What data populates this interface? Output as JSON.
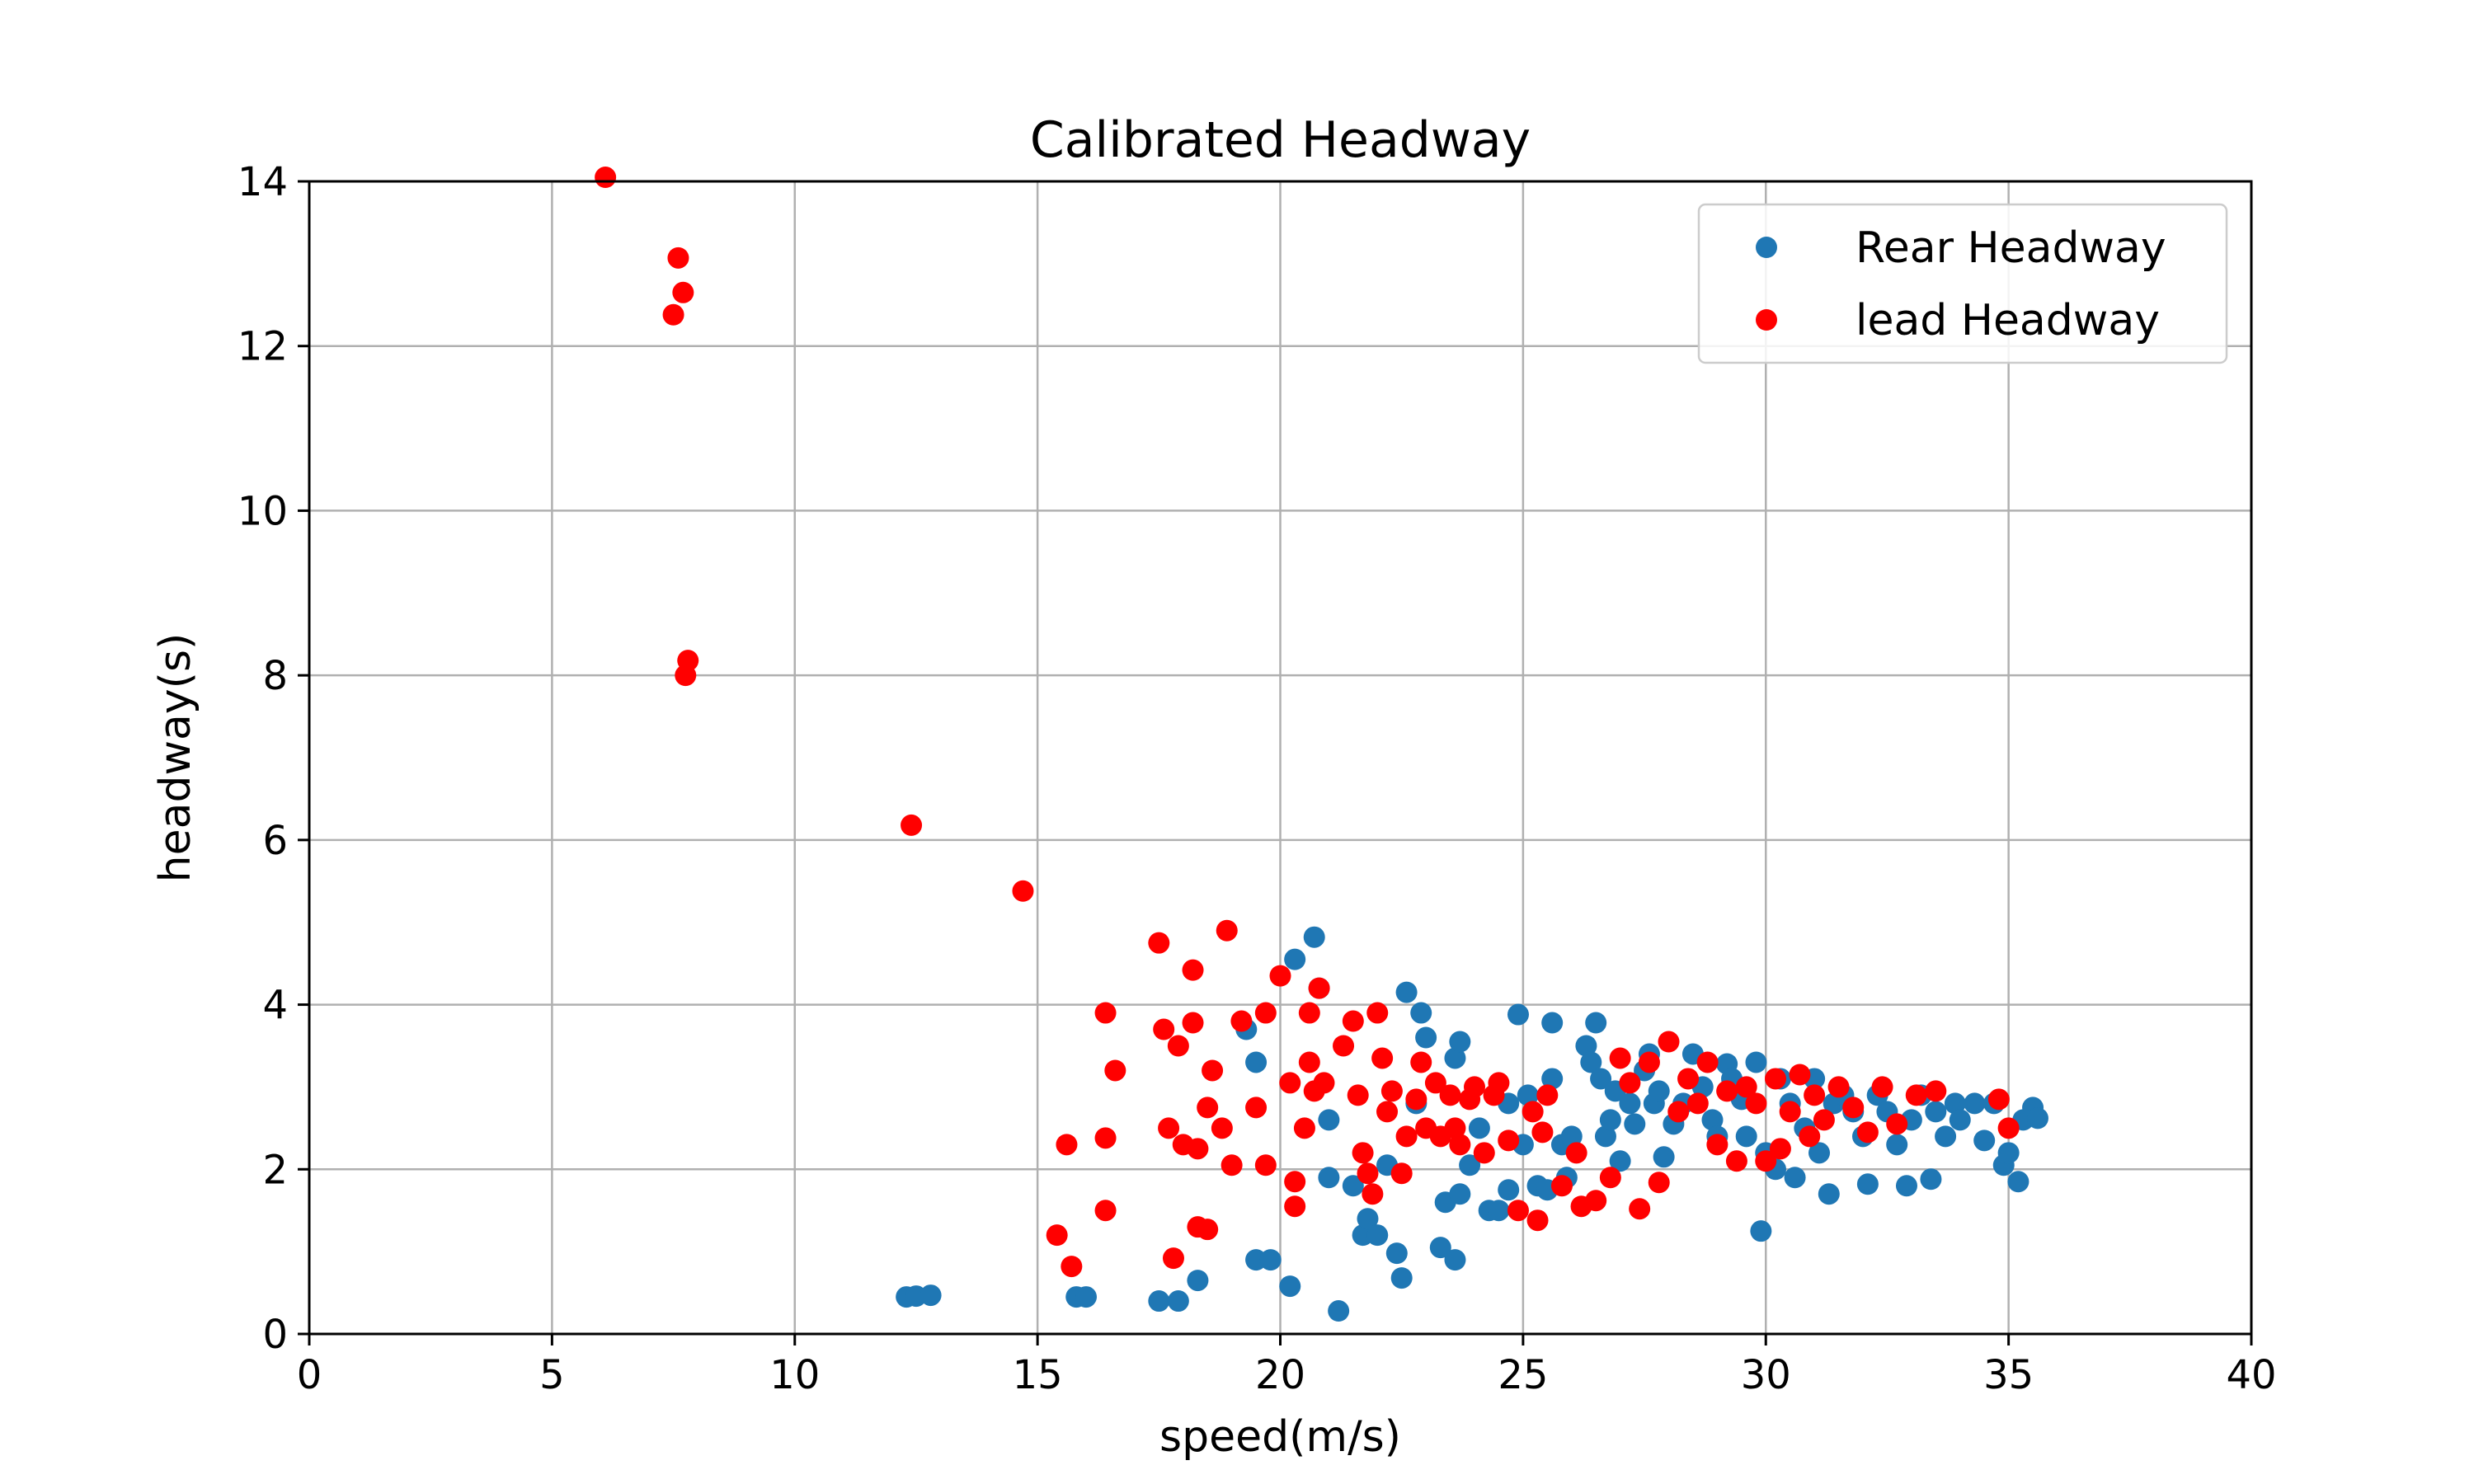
{
  "chart_data": {
    "type": "scatter",
    "title": "Calibrated Headway",
    "xlabel": "speed(m/s)",
    "ylabel": "headway(s)",
    "xlim": [
      0,
      40
    ],
    "ylim": [
      0,
      14
    ],
    "xticks": [
      "0",
      "5",
      "10",
      "15",
      "20",
      "25",
      "30",
      "35",
      "40"
    ],
    "yticks": [
      "0",
      "2",
      "4",
      "6",
      "8",
      "10",
      "12",
      "14"
    ],
    "grid": true,
    "legend_position": "top-right",
    "series": [
      {
        "name": "Rear Headway",
        "color": "#1f77b4",
        "points": [
          [
            12.3,
            0.45
          ],
          [
            12.5,
            0.46
          ],
          [
            12.8,
            0.47
          ],
          [
            15.8,
            0.45
          ],
          [
            16.0,
            0.45
          ],
          [
            17.5,
            0.4
          ],
          [
            17.9,
            0.4
          ],
          [
            18.3,
            0.65
          ],
          [
            19.5,
            0.9
          ],
          [
            19.8,
            0.9
          ],
          [
            20.2,
            0.58
          ],
          [
            21.2,
            0.28
          ],
          [
            19.5,
            3.3
          ],
          [
            19.3,
            3.7
          ],
          [
            20.3,
            4.55
          ],
          [
            20.7,
            4.82
          ],
          [
            20.8,
            4.2
          ],
          [
            21.0,
            2.6
          ],
          [
            21.0,
            1.9
          ],
          [
            21.5,
            1.8
          ],
          [
            21.7,
            1.2
          ],
          [
            21.8,
            1.4
          ],
          [
            22.0,
            1.2
          ],
          [
            22.2,
            2.05
          ],
          [
            22.4,
            0.98
          ],
          [
            22.5,
            0.68
          ],
          [
            22.6,
            4.15
          ],
          [
            22.9,
            3.9
          ],
          [
            23.0,
            3.6
          ],
          [
            22.8,
            2.8
          ],
          [
            23.3,
            1.05
          ],
          [
            23.4,
            1.6
          ],
          [
            23.6,
            0.9
          ],
          [
            23.6,
            3.35
          ],
          [
            23.7,
            3.55
          ],
          [
            23.7,
            1.7
          ],
          [
            23.9,
            2.05
          ],
          [
            24.1,
            2.5
          ],
          [
            24.3,
            1.5
          ],
          [
            24.5,
            1.5
          ],
          [
            24.7,
            1.75
          ],
          [
            24.7,
            2.8
          ],
          [
            24.9,
            3.88
          ],
          [
            25.0,
            2.3
          ],
          [
            25.1,
            2.9
          ],
          [
            25.3,
            1.8
          ],
          [
            25.5,
            1.75
          ],
          [
            25.6,
            3.1
          ],
          [
            25.6,
            3.78
          ],
          [
            25.8,
            2.3
          ],
          [
            25.9,
            1.9
          ],
          [
            26.0,
            2.4
          ],
          [
            26.3,
            3.5
          ],
          [
            26.4,
            3.3
          ],
          [
            26.5,
            3.78
          ],
          [
            26.6,
            3.1
          ],
          [
            26.7,
            2.4
          ],
          [
            26.8,
            2.6
          ],
          [
            26.9,
            2.95
          ],
          [
            27.0,
            2.1
          ],
          [
            27.2,
            2.8
          ],
          [
            27.3,
            2.55
          ],
          [
            27.5,
            3.2
          ],
          [
            27.6,
            3.4
          ],
          [
            27.7,
            2.8
          ],
          [
            27.8,
            2.95
          ],
          [
            27.9,
            2.15
          ],
          [
            28.1,
            2.55
          ],
          [
            28.3,
            2.8
          ],
          [
            28.5,
            3.4
          ],
          [
            28.7,
            3.0
          ],
          [
            28.9,
            2.6
          ],
          [
            29.0,
            2.4
          ],
          [
            29.2,
            3.28
          ],
          [
            29.3,
            3.1
          ],
          [
            29.5,
            2.85
          ],
          [
            29.6,
            2.4
          ],
          [
            29.8,
            3.3
          ],
          [
            29.9,
            1.25
          ],
          [
            30.0,
            2.2
          ],
          [
            30.2,
            2.0
          ],
          [
            30.3,
            3.1
          ],
          [
            30.5,
            2.8
          ],
          [
            30.6,
            1.9
          ],
          [
            30.8,
            2.5
          ],
          [
            31.0,
            3.1
          ],
          [
            31.1,
            2.2
          ],
          [
            31.3,
            1.7
          ],
          [
            31.4,
            2.8
          ],
          [
            31.6,
            2.9
          ],
          [
            31.8,
            2.7
          ],
          [
            32.0,
            2.4
          ],
          [
            32.1,
            1.82
          ],
          [
            32.3,
            2.9
          ],
          [
            32.5,
            2.7
          ],
          [
            32.7,
            2.3
          ],
          [
            32.9,
            1.8
          ],
          [
            33.0,
            2.6
          ],
          [
            33.2,
            2.9
          ],
          [
            33.4,
            1.88
          ],
          [
            33.5,
            2.7
          ],
          [
            33.7,
            2.4
          ],
          [
            33.9,
            2.8
          ],
          [
            34.0,
            2.6
          ],
          [
            34.3,
            2.8
          ],
          [
            34.5,
            2.35
          ],
          [
            34.7,
            2.8
          ],
          [
            34.9,
            2.05
          ],
          [
            35.0,
            2.2
          ],
          [
            35.2,
            1.85
          ],
          [
            35.3,
            2.6
          ],
          [
            35.5,
            2.75
          ],
          [
            35.6,
            2.62
          ]
        ]
      },
      {
        "name": "lead Headway",
        "color": "#ff0000",
        "points": [
          [
            6.1,
            14.05
          ],
          [
            7.6,
            13.07
          ],
          [
            7.7,
            12.65
          ],
          [
            7.5,
            12.38
          ],
          [
            7.8,
            8.18
          ],
          [
            7.75,
            8.0
          ],
          [
            12.4,
            6.18
          ],
          [
            14.7,
            5.38
          ],
          [
            15.4,
            1.2
          ],
          [
            15.6,
            2.3
          ],
          [
            15.7,
            0.82
          ],
          [
            16.4,
            3.9
          ],
          [
            16.4,
            2.38
          ],
          [
            16.4,
            1.5
          ],
          [
            16.6,
            3.2
          ],
          [
            17.5,
            4.75
          ],
          [
            17.6,
            3.7
          ],
          [
            17.7,
            2.5
          ],
          [
            17.8,
            0.92
          ],
          [
            17.9,
            3.5
          ],
          [
            18.0,
            2.3
          ],
          [
            18.2,
            4.42
          ],
          [
            18.2,
            3.78
          ],
          [
            18.3,
            2.25
          ],
          [
            18.3,
            1.3
          ],
          [
            18.5,
            2.75
          ],
          [
            18.5,
            1.27
          ],
          [
            18.6,
            3.2
          ],
          [
            18.8,
            2.5
          ],
          [
            18.9,
            4.9
          ],
          [
            19.0,
            2.05
          ],
          [
            19.2,
            3.8
          ],
          [
            19.5,
            2.75
          ],
          [
            19.7,
            3.9
          ],
          [
            19.7,
            2.05
          ],
          [
            20.0,
            4.35
          ],
          [
            20.2,
            3.05
          ],
          [
            20.3,
            1.55
          ],
          [
            20.3,
            1.85
          ],
          [
            20.5,
            2.5
          ],
          [
            20.6,
            3.9
          ],
          [
            20.6,
            3.3
          ],
          [
            20.7,
            2.95
          ],
          [
            20.8,
            4.2
          ],
          [
            20.9,
            3.05
          ],
          [
            21.3,
            3.5
          ],
          [
            21.5,
            3.8
          ],
          [
            21.6,
            2.9
          ],
          [
            21.7,
            2.2
          ],
          [
            21.8,
            1.95
          ],
          [
            21.9,
            1.7
          ],
          [
            22.0,
            3.9
          ],
          [
            22.1,
            3.35
          ],
          [
            22.2,
            2.7
          ],
          [
            22.3,
            2.95
          ],
          [
            22.5,
            1.95
          ],
          [
            22.6,
            2.4
          ],
          [
            22.8,
            2.85
          ],
          [
            22.9,
            3.3
          ],
          [
            23.0,
            2.5
          ],
          [
            23.2,
            3.05
          ],
          [
            23.3,
            2.4
          ],
          [
            23.5,
            2.9
          ],
          [
            23.6,
            2.5
          ],
          [
            23.7,
            2.3
          ],
          [
            23.9,
            2.85
          ],
          [
            24.0,
            3.0
          ],
          [
            24.2,
            2.2
          ],
          [
            24.4,
            2.9
          ],
          [
            24.5,
            3.05
          ],
          [
            24.7,
            2.35
          ],
          [
            24.9,
            1.5
          ],
          [
            25.2,
            2.7
          ],
          [
            25.3,
            1.38
          ],
          [
            25.4,
            2.45
          ],
          [
            25.5,
            2.9
          ],
          [
            25.8,
            1.8
          ],
          [
            26.1,
            2.2
          ],
          [
            26.2,
            1.55
          ],
          [
            26.5,
            1.62
          ],
          [
            26.8,
            1.9
          ],
          [
            27.0,
            3.35
          ],
          [
            27.2,
            3.05
          ],
          [
            27.4,
            1.52
          ],
          [
            27.6,
            3.3
          ],
          [
            27.8,
            1.84
          ],
          [
            28.0,
            3.55
          ],
          [
            28.2,
            2.7
          ],
          [
            28.4,
            3.1
          ],
          [
            28.6,
            2.8
          ],
          [
            28.8,
            3.3
          ],
          [
            29.0,
            2.3
          ],
          [
            29.2,
            2.95
          ],
          [
            29.4,
            2.1
          ],
          [
            29.6,
            3.0
          ],
          [
            29.8,
            2.8
          ],
          [
            30.0,
            2.1
          ],
          [
            30.2,
            3.1
          ],
          [
            30.3,
            2.25
          ],
          [
            30.5,
            2.7
          ],
          [
            30.7,
            3.15
          ],
          [
            30.9,
            2.4
          ],
          [
            31.0,
            2.9
          ],
          [
            31.2,
            2.6
          ],
          [
            31.5,
            3.0
          ],
          [
            31.8,
            2.75
          ],
          [
            32.1,
            2.45
          ],
          [
            32.4,
            3.0
          ],
          [
            32.7,
            2.55
          ],
          [
            33.1,
            2.9
          ],
          [
            33.5,
            2.95
          ],
          [
            34.8,
            2.85
          ],
          [
            35.0,
            2.5
          ]
        ]
      }
    ]
  }
}
